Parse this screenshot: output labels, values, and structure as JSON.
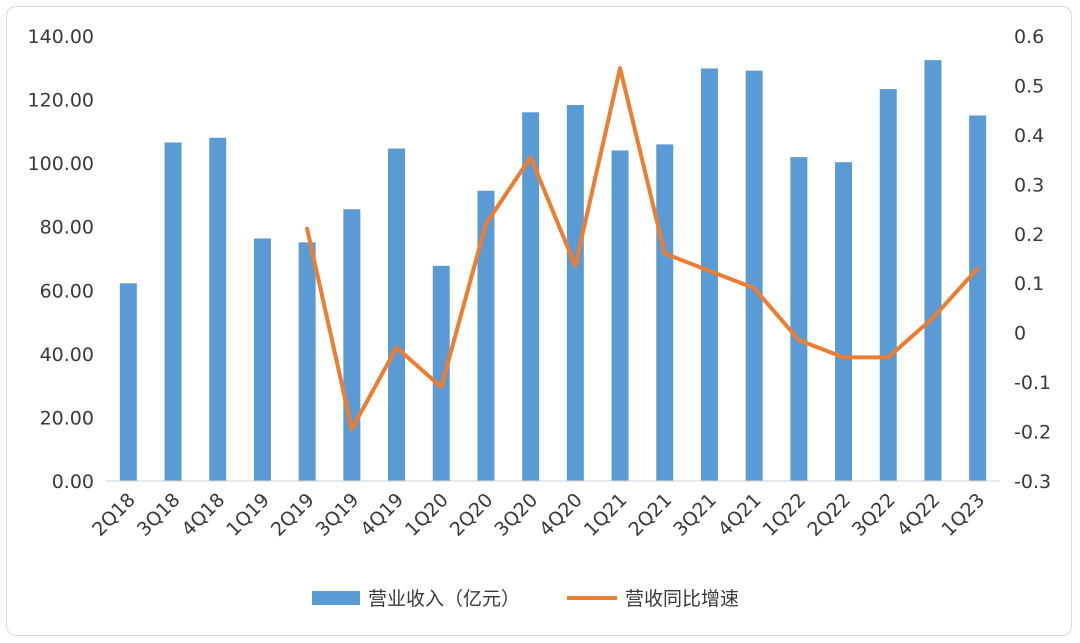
{
  "chart_data": {
    "type": "bar",
    "categories": [
      "2Q18",
      "3Q18",
      "4Q18",
      "1Q19",
      "2Q19",
      "3Q19",
      "4Q19",
      "1Q20",
      "2Q20",
      "3Q20",
      "4Q20",
      "1Q21",
      "2Q21",
      "3Q21",
      "4Q21",
      "1Q22",
      "2Q22",
      "3Q22",
      "4Q22",
      "1Q23"
    ],
    "series": [
      {
        "name": "营业收入（亿元）",
        "type": "bar",
        "axis": "left",
        "color": "#5b9bd5",
        "values": [
          62.2,
          106.5,
          108.0,
          76.3,
          75.1,
          85.5,
          104.6,
          67.7,
          91.3,
          116.0,
          118.3,
          104.0,
          105.9,
          129.8,
          129.1,
          101.9,
          100.3,
          123.3,
          132.4,
          115.0
        ]
      },
      {
        "name": "营收同比增速",
        "type": "line",
        "axis": "right",
        "color": "#ed7d31",
        "values": [
          null,
          null,
          null,
          null,
          0.21,
          -0.195,
          -0.03,
          -0.11,
          0.22,
          0.355,
          0.135,
          0.535,
          0.16,
          0.125,
          0.09,
          -0.015,
          -0.05,
          -0.05,
          0.03,
          0.13
        ]
      }
    ],
    "yleft": {
      "min": 0,
      "max": 140,
      "step": 20,
      "tick_labels": [
        "0.00",
        "20.00",
        "40.00",
        "60.00",
        "80.00",
        "100.00",
        "120.00",
        "140.00"
      ]
    },
    "yright": {
      "min": -0.3,
      "max": 0.6,
      "step": 0.1,
      "tick_labels": [
        "-0.3",
        "-0.2",
        "-0.1",
        "0",
        "0.1",
        "0.2",
        "0.3",
        "0.4",
        "0.5",
        "0.6"
      ]
    },
    "grid": false,
    "legend": "bottom-center"
  }
}
